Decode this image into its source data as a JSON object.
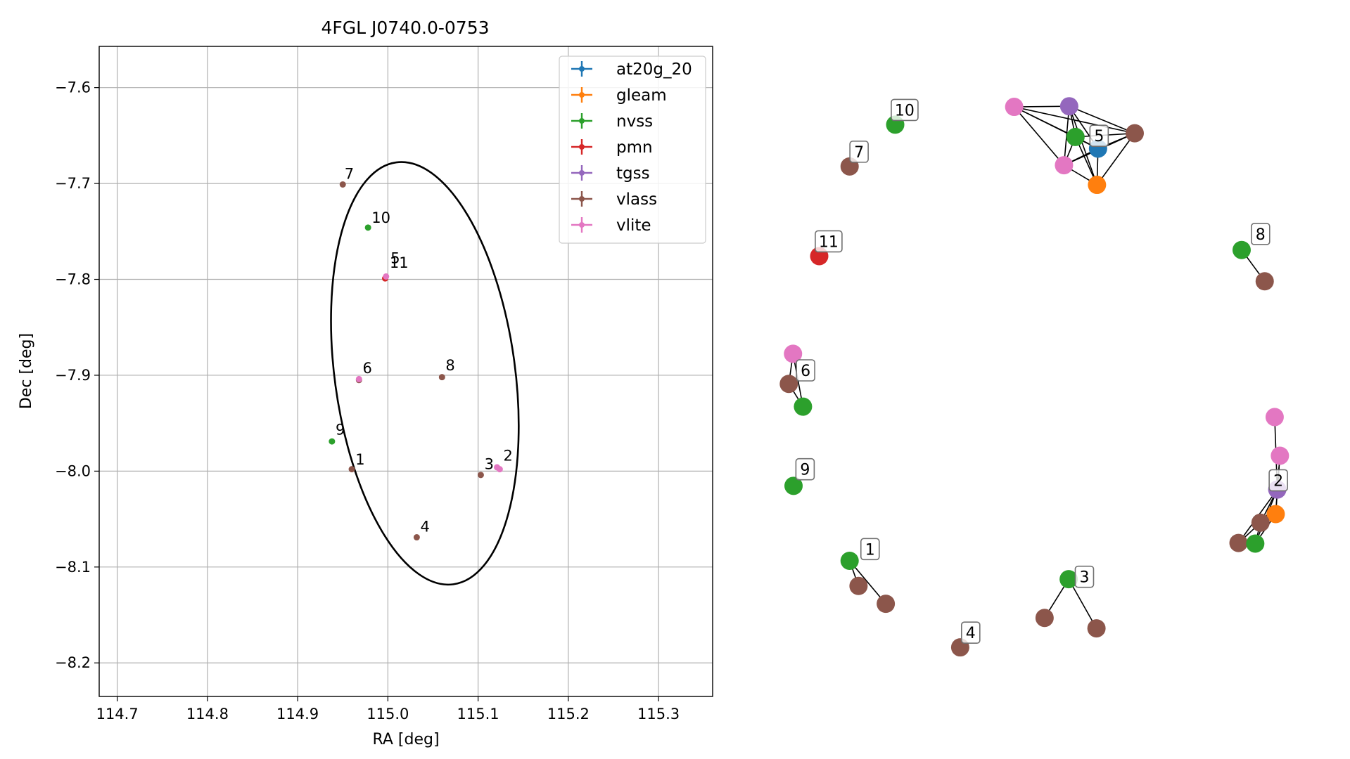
{
  "colors": {
    "at20g_20": "#1f77b4",
    "gleam": "#ff7f0e",
    "nvss": "#2ca02c",
    "pmn": "#d62728",
    "tgss": "#9467bd",
    "vlass": "#8c564b",
    "vlite": "#e377c2"
  },
  "chart_data": [
    {
      "type": "scatter",
      "title": "4FGL J0740.0-0753",
      "xlabel": "RA [deg]",
      "ylabel": "Dec [deg]",
      "xlim": [
        114.68,
        115.36
      ],
      "ylim": [
        -8.235,
        -7.557
      ],
      "xticks": [
        114.7,
        114.8,
        114.9,
        115.0,
        115.1,
        115.2,
        115.3
      ],
      "xtick_labels": [
        "114.7",
        "114.8",
        "114.9",
        "115.0",
        "115.1",
        "115.2",
        "115.3"
      ],
      "yticks": [
        -7.6,
        -7.7,
        -7.8,
        -7.9,
        -8.0,
        -8.1,
        -8.2
      ],
      "ytick_labels": [
        "−7.6",
        "−7.7",
        "−7.8",
        "−7.9",
        "−8.0",
        "−8.1",
        "−8.2"
      ],
      "grid": true,
      "legend_position": "top-right",
      "legend": [
        "at20g_20",
        "gleam",
        "nvss",
        "pmn",
        "tgss",
        "vlass",
        "vlite"
      ],
      "ellipse": {
        "center": [
          115.041,
          -7.898
        ],
        "semi_ra": 0.1,
        "semi_dec": 0.222,
        "angle_deg": -7.7
      },
      "points": [
        {
          "ra": 114.95,
          "dec": -7.701,
          "survey": "vlass"
        },
        {
          "ra": 114.978,
          "dec": -7.746,
          "survey": "nvss"
        },
        {
          "ra": 114.997,
          "dec": -7.799,
          "survey": "pmn"
        },
        {
          "ra": 114.998,
          "dec": -7.797,
          "survey": "vlite"
        },
        {
          "ra": 114.968,
          "dec": -7.905,
          "survey": "vlass"
        },
        {
          "ra": 114.968,
          "dec": -7.904,
          "survey": "vlite"
        },
        {
          "ra": 115.06,
          "dec": -7.902,
          "survey": "vlass"
        },
        {
          "ra": 114.938,
          "dec": -7.969,
          "survey": "nvss"
        },
        {
          "ra": 114.96,
          "dec": -7.998,
          "survey": "vlass"
        },
        {
          "ra": 115.103,
          "dec": -8.004,
          "survey": "vlass"
        },
        {
          "ra": 115.121,
          "dec": -7.996,
          "survey": "vlite"
        },
        {
          "ra": 115.124,
          "dec": -7.998,
          "survey": "vlite"
        },
        {
          "ra": 115.032,
          "dec": -8.069,
          "survey": "vlass"
        }
      ],
      "annotations": [
        {
          "text": "7",
          "ra": 114.952,
          "dec": -7.695
        },
        {
          "text": "10",
          "ra": 114.982,
          "dec": -7.741
        },
        {
          "text": "5",
          "ra": 115.003,
          "dec": -7.783
        },
        {
          "text": "11",
          "ra": 115.002,
          "dec": -7.788
        },
        {
          "text": "6",
          "ra": 114.972,
          "dec": -7.898
        },
        {
          "text": "8",
          "ra": 115.064,
          "dec": -7.895
        },
        {
          "text": "9",
          "ra": 114.942,
          "dec": -7.962
        },
        {
          "text": "1",
          "ra": 114.964,
          "dec": -7.993
        },
        {
          "text": "3",
          "ra": 115.107,
          "dec": -7.998
        },
        {
          "text": "2",
          "ra": 115.128,
          "dec": -7.989
        },
        {
          "text": "4",
          "ra": 115.036,
          "dec": -8.063
        }
      ]
    },
    {
      "type": "network",
      "xlim": [
        0,
        1
      ],
      "ylim": [
        0,
        1
      ],
      "nodes": [
        {
          "id": "c5a",
          "x": 0.472,
          "y": 0.937,
          "survey": "vlite"
        },
        {
          "id": "c5b",
          "x": 0.577,
          "y": 0.938,
          "survey": "tgss"
        },
        {
          "id": "c5c",
          "x": 0.589,
          "y": 0.888,
          "survey": "nvss"
        },
        {
          "id": "c5d",
          "x": 0.632,
          "y": 0.869,
          "survey": "at20g_20"
        },
        {
          "id": "c5e",
          "x": 0.567,
          "y": 0.842,
          "survey": "vlite"
        },
        {
          "id": "c5f",
          "x": 0.63,
          "y": 0.81,
          "survey": "gleam"
        },
        {
          "id": "c5g",
          "x": 0.702,
          "y": 0.894,
          "survey": "vlass"
        },
        {
          "id": "n10",
          "x": 0.245,
          "y": 0.908,
          "survey": "nvss"
        },
        {
          "id": "n7",
          "x": 0.158,
          "y": 0.84,
          "survey": "vlass"
        },
        {
          "id": "n11",
          "x": 0.1,
          "y": 0.694,
          "survey": "pmn"
        },
        {
          "id": "n8a",
          "x": 0.906,
          "y": 0.704,
          "survey": "nvss"
        },
        {
          "id": "n8b",
          "x": 0.95,
          "y": 0.653,
          "survey": "vlass"
        },
        {
          "id": "n6a",
          "x": 0.05,
          "y": 0.535,
          "survey": "vlite"
        },
        {
          "id": "n6b",
          "x": 0.042,
          "y": 0.486,
          "survey": "vlass"
        },
        {
          "id": "n6c",
          "x": 0.069,
          "y": 0.449,
          "survey": "nvss"
        },
        {
          "id": "n9",
          "x": 0.051,
          "y": 0.32,
          "survey": "nvss"
        },
        {
          "id": "n2a",
          "x": 0.969,
          "y": 0.432,
          "survey": "vlite"
        },
        {
          "id": "n2b",
          "x": 0.979,
          "y": 0.369,
          "survey": "vlite"
        },
        {
          "id": "n2c",
          "x": 0.974,
          "y": 0.314,
          "survey": "tgss"
        },
        {
          "id": "n2d",
          "x": 0.971,
          "y": 0.274,
          "survey": "gleam"
        },
        {
          "id": "n2e",
          "x": 0.942,
          "y": 0.26,
          "survey": "vlass"
        },
        {
          "id": "n2f",
          "x": 0.9,
          "y": 0.227,
          "survey": "vlass"
        },
        {
          "id": "n2g",
          "x": 0.932,
          "y": 0.226,
          "survey": "nvss"
        },
        {
          "id": "n1a",
          "x": 0.158,
          "y": 0.198,
          "survey": "nvss"
        },
        {
          "id": "n1b",
          "x": 0.175,
          "y": 0.157,
          "survey": "vlass"
        },
        {
          "id": "n1c",
          "x": 0.227,
          "y": 0.128,
          "survey": "vlass"
        },
        {
          "id": "n3a",
          "x": 0.576,
          "y": 0.168,
          "survey": "nvss"
        },
        {
          "id": "n3b",
          "x": 0.53,
          "y": 0.105,
          "survey": "vlass"
        },
        {
          "id": "n3c",
          "x": 0.629,
          "y": 0.088,
          "survey": "vlass"
        },
        {
          "id": "n4",
          "x": 0.369,
          "y": 0.057,
          "survey": "vlass"
        }
      ],
      "edges": [
        [
          "c5a",
          "c5b"
        ],
        [
          "c5a",
          "c5c"
        ],
        [
          "c5a",
          "c5d"
        ],
        [
          "c5a",
          "c5g"
        ],
        [
          "c5a",
          "c5e"
        ],
        [
          "c5b",
          "c5c"
        ],
        [
          "c5b",
          "c5d"
        ],
        [
          "c5b",
          "c5e"
        ],
        [
          "c5b",
          "c5f"
        ],
        [
          "c5b",
          "c5g"
        ],
        [
          "c5c",
          "c5d"
        ],
        [
          "c5c",
          "c5e"
        ],
        [
          "c5c",
          "c5f"
        ],
        [
          "c5c",
          "c5g"
        ],
        [
          "c5d",
          "c5e"
        ],
        [
          "c5d",
          "c5f"
        ],
        [
          "c5d",
          "c5g"
        ],
        [
          "c5e",
          "c5f"
        ],
        [
          "c5f",
          "c5g"
        ],
        [
          "c5e",
          "c5g"
        ],
        [
          "n8a",
          "n8b"
        ],
        [
          "n6a",
          "n6b"
        ],
        [
          "n6a",
          "n6c"
        ],
        [
          "n6b",
          "n6c"
        ],
        [
          "n2a",
          "n2c"
        ],
        [
          "n2b",
          "n2c"
        ],
        [
          "n2b",
          "n2d"
        ],
        [
          "n2c",
          "n2d"
        ],
        [
          "n2c",
          "n2e"
        ],
        [
          "n2c",
          "n2f"
        ],
        [
          "n2c",
          "n2g"
        ],
        [
          "n2d",
          "n2e"
        ],
        [
          "n2d",
          "n2g"
        ],
        [
          "n2e",
          "n2f"
        ],
        [
          "n2e",
          "n2g"
        ],
        [
          "n1a",
          "n1b"
        ],
        [
          "n1a",
          "n1c"
        ],
        [
          "n3a",
          "n3b"
        ],
        [
          "n3a",
          "n3c"
        ]
      ],
      "labels": [
        {
          "text": "10",
          "x": 0.263,
          "y": 0.932
        },
        {
          "text": "7",
          "x": 0.176,
          "y": 0.864
        },
        {
          "text": "5",
          "x": 0.634,
          "y": 0.89
        },
        {
          "text": "11",
          "x": 0.118,
          "y": 0.718
        },
        {
          "text": "8",
          "x": 0.942,
          "y": 0.73
        },
        {
          "text": "6",
          "x": 0.074,
          "y": 0.508
        },
        {
          "text": "9",
          "x": 0.073,
          "y": 0.347
        },
        {
          "text": "2",
          "x": 0.976,
          "y": 0.329
        },
        {
          "text": "1",
          "x": 0.197,
          "y": 0.217
        },
        {
          "text": "3",
          "x": 0.606,
          "y": 0.172
        },
        {
          "text": "4",
          "x": 0.389,
          "y": 0.081
        }
      ]
    }
  ]
}
